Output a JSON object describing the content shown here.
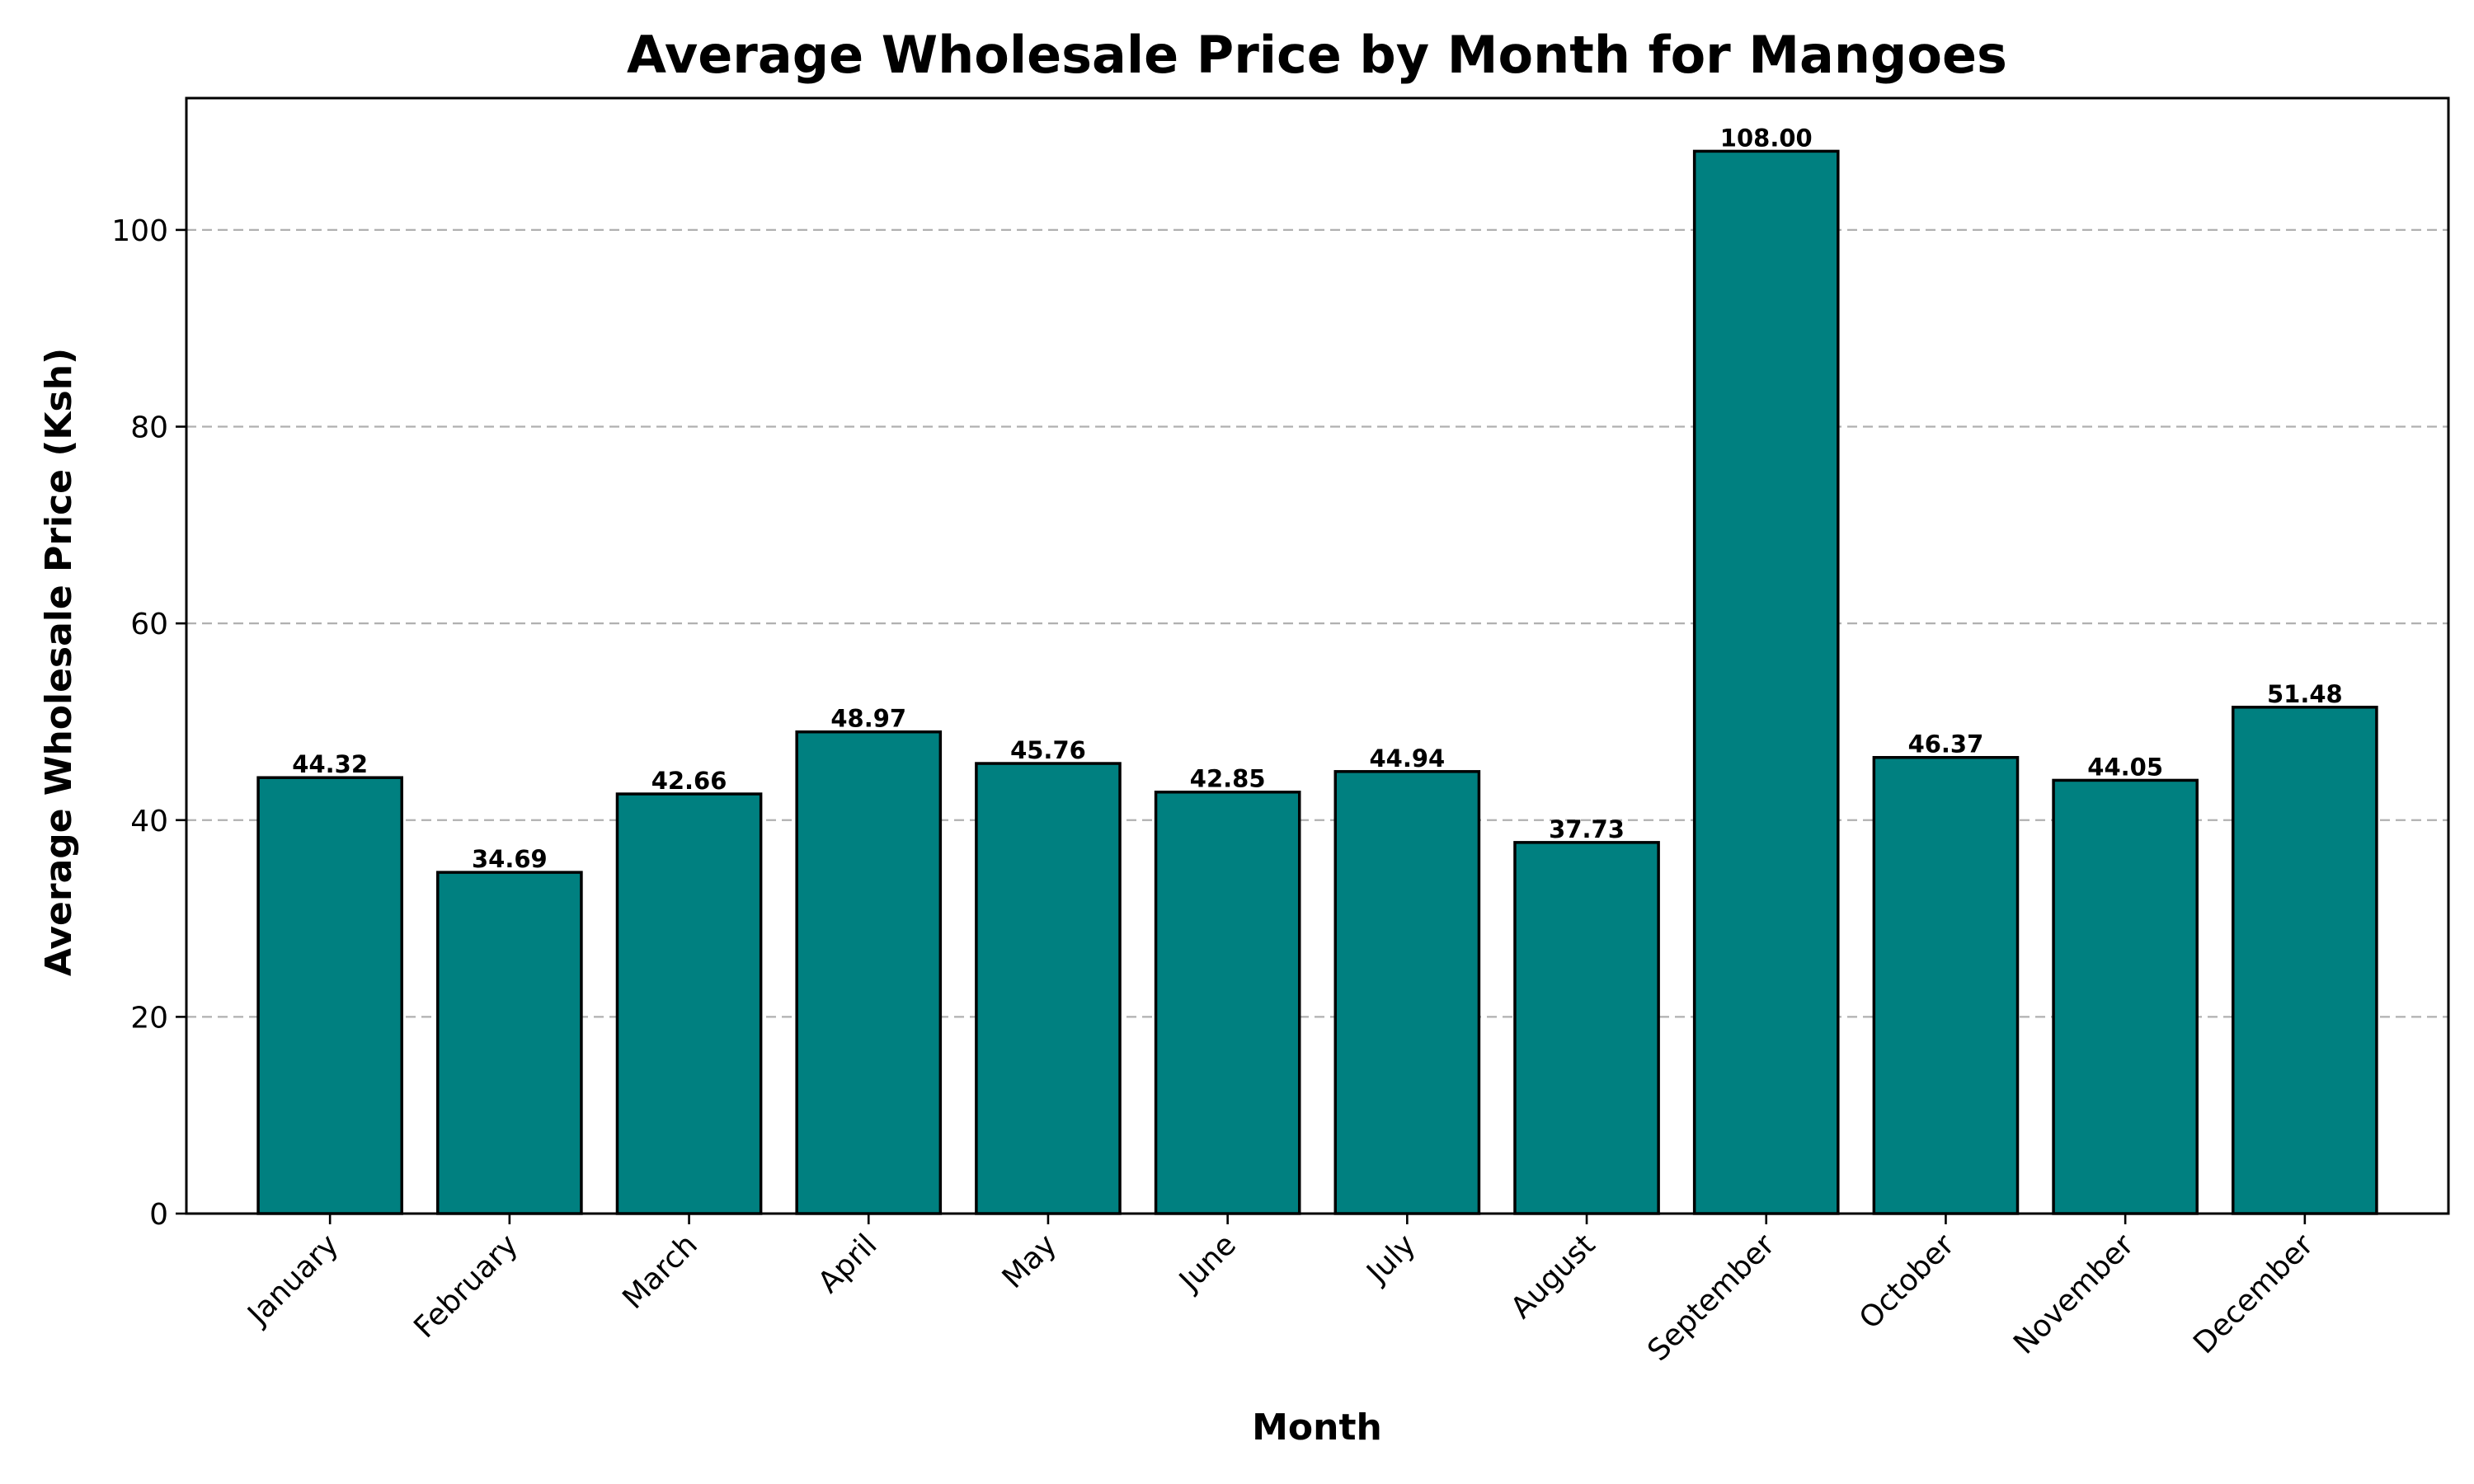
{
  "chart_data": {
    "type": "bar",
    "title": "Average Wholesale Price by Month for Mangoes",
    "xlabel": "Month",
    "ylabel": "Average Wholesale Price (Ksh)",
    "categories": [
      "January",
      "February",
      "March",
      "April",
      "May",
      "June",
      "July",
      "August",
      "September",
      "October",
      "November",
      "December"
    ],
    "values": [
      44.32,
      34.69,
      42.66,
      48.97,
      45.76,
      42.85,
      44.94,
      37.73,
      108.0,
      46.37,
      44.05,
      51.48
    ],
    "data_labels": [
      "44.32",
      "34.69",
      "42.66",
      "48.97",
      "45.76",
      "42.85",
      "44.94",
      "37.73",
      "108.00",
      "46.37",
      "44.05",
      "51.48"
    ],
    "ylim": [
      0,
      113.4
    ],
    "yticks": [
      0,
      20,
      40,
      60,
      80,
      100
    ],
    "ytick_labels": [
      "0",
      "20",
      "40",
      "60",
      "80",
      "100"
    ],
    "grid": "y-dashed",
    "legend": "none",
    "colors": {
      "bar": "#008080",
      "bar_edge": "#000000",
      "grid": "#b0b0b0"
    }
  }
}
